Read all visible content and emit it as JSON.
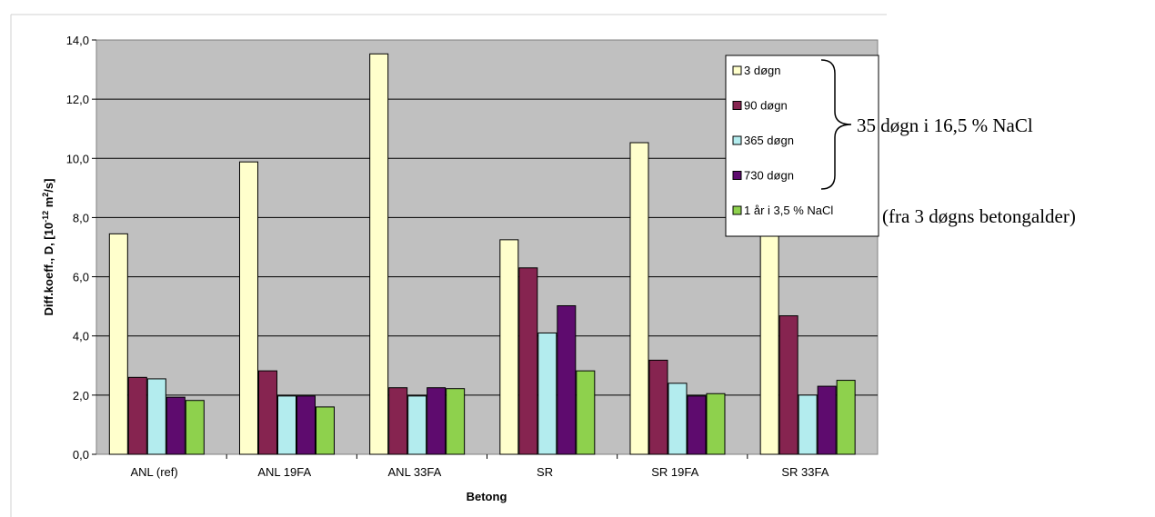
{
  "chart_data": {
    "type": "bar",
    "xlabel": "Betong",
    "ylabel_main": "Diff.koeff., D, [10",
    "ylabel_exp1": "-12",
    "ylabel_mid": " m",
    "ylabel_exp2": "2",
    "ylabel_end": "/s]",
    "ylim": [
      0,
      14
    ],
    "yticks": [
      "0,0",
      "2,0",
      "4,0",
      "6,0",
      "8,0",
      "10,0",
      "12,0",
      "14,0"
    ],
    "grid": true,
    "legend_position": "right",
    "categories": [
      "ANL (ref)",
      "ANL 19FA",
      "ANL 33FA",
      "SR",
      "SR 19FA",
      "SR 33FA"
    ],
    "series": [
      {
        "name": "3 døgn",
        "color": "#ffffcc",
        "values": [
          7.45,
          9.88,
          13.53,
          7.25,
          10.53,
          9.47
        ]
      },
      {
        "name": "90 døgn",
        "color": "#862450",
        "values": [
          2.6,
          2.82,
          2.25,
          6.3,
          3.18,
          4.68
        ]
      },
      {
        "name": "365 døgn",
        "color": "#b3ecee",
        "values": [
          2.55,
          1.97,
          1.97,
          4.1,
          2.4,
          2.0
        ]
      },
      {
        "name": "730 døgn",
        "color": "#5e0b6e",
        "values": [
          1.93,
          1.97,
          2.25,
          5.02,
          1.97,
          2.3
        ]
      },
      {
        "name": "1 år i 3,5 % NaCl",
        "color": "#8ed14d",
        "values": [
          1.82,
          1.6,
          2.22,
          2.82,
          2.05,
          2.5
        ]
      }
    ],
    "annotations": [
      "35 døgn i 16,5 % NaCl",
      "(fra 3 døgns betongalder)"
    ]
  }
}
